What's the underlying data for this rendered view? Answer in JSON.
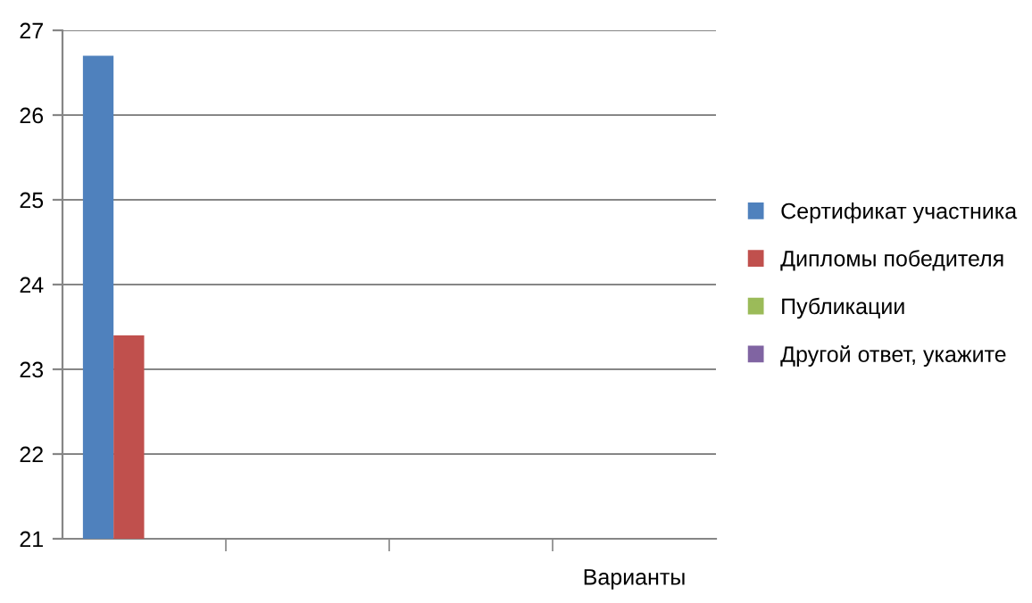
{
  "chart_data": {
    "type": "bar",
    "categories": [
      null,
      null,
      null,
      "Варианты"
    ],
    "series": [
      {
        "name": "Сертификат участника",
        "color": "#4f81bd",
        "values": [
          26.7,
          null,
          null,
          null
        ]
      },
      {
        "name": "Дипломы победителя",
        "color": "#c0504d",
        "values": [
          23.4,
          null,
          null,
          null
        ]
      },
      {
        "name": "Публикации",
        "color": "#9bbb59",
        "values": [
          null,
          null,
          null,
          null
        ]
      },
      {
        "name": "Другой ответ, укажите",
        "color": "#8064a2",
        "values": [
          null,
          null,
          null,
          null
        ]
      }
    ],
    "ylim": [
      21,
      27
    ],
    "yticks": [
      21,
      22,
      23,
      24,
      25,
      26,
      27
    ],
    "grid": "y",
    "legend": "right"
  }
}
